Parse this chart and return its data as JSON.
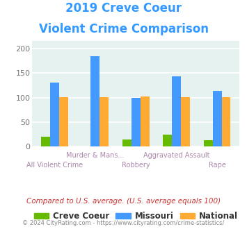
{
  "title_line1": "2019 Creve Coeur",
  "title_line2": "Violent Crime Comparison",
  "title_color": "#3399ff",
  "creve_coeur": [
    20,
    0,
    14,
    25,
    13
  ],
  "missouri": [
    130,
    185,
    100,
    143,
    113
  ],
  "national": [
    101,
    101,
    102,
    101,
    101
  ],
  "bar_colors": {
    "creve_coeur": "#66bb00",
    "missouri": "#4499ff",
    "national": "#ffaa33"
  },
  "ylim": [
    0,
    215
  ],
  "yticks": [
    0,
    50,
    100,
    150,
    200
  ],
  "plot_bg": "#e6f2f0",
  "grid_color": "#ffffff",
  "xlabel_color": "#aa88aa",
  "legend_labels": [
    "Creve Coeur",
    "Missouri",
    "National"
  ],
  "footnote1": "Compared to U.S. average. (U.S. average equals 100)",
  "footnote2": "© 2024 CityRating.com - https://www.cityrating.com/crime-statistics/",
  "footnote1_color": "#cc3333",
  "footnote2_color": "#888888",
  "bar_width": 0.22
}
